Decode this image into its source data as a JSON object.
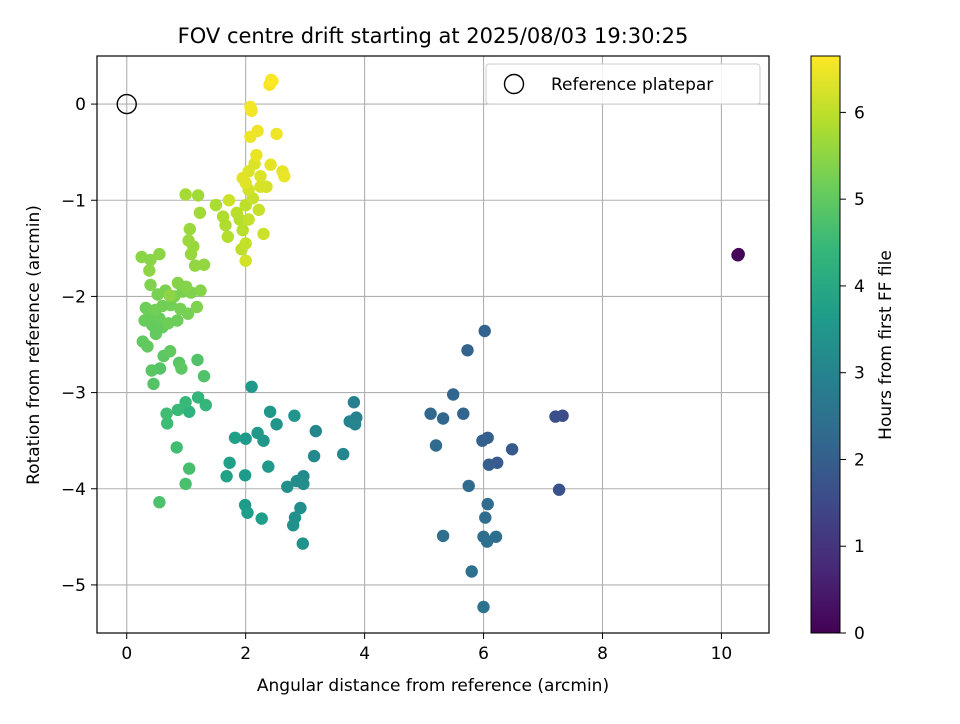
{
  "chart_data": {
    "type": "scatter",
    "title": "FOV centre drift starting at 2025/08/03 19:30:25",
    "xlabel": "Angular distance from reference (arcmin)",
    "ylabel": "Rotation from reference (arcmin)",
    "xlim": [
      -0.5,
      10.8
    ],
    "ylim": [
      -5.5,
      0.5
    ],
    "xticks": [
      0,
      2,
      4,
      6,
      8,
      10
    ],
    "yticks": [
      0,
      -1,
      -2,
      -3,
      -4,
      -5
    ],
    "xtick_labels": [
      "0",
      "2",
      "4",
      "6",
      "8",
      "10"
    ],
    "ytick_labels": [
      "0",
      "−1",
      "−2",
      "−3",
      "−4",
      "−5"
    ],
    "grid": true,
    "legend": {
      "placement": "top-right",
      "entries": [
        "Reference platepar"
      ]
    },
    "reference": {
      "name": "Reference platepar",
      "x": 0.0,
      "y": 0.0,
      "marker": "open-circle"
    },
    "colorbar": {
      "label": "Hours from first FF file",
      "colormap": "viridis",
      "range": [
        0,
        6.65
      ],
      "ticks": [
        0,
        1,
        2,
        3,
        4,
        5,
        6
      ],
      "tick_labels": [
        "0",
        "1",
        "2",
        "3",
        "4",
        "5",
        "6"
      ],
      "stops": [
        "#440154",
        "#482878",
        "#3e4989",
        "#31688e",
        "#26828e",
        "#1f9e89",
        "#35b779",
        "#6ece58",
        "#b5de2b",
        "#fde725"
      ]
    },
    "points": [
      [
        10.28,
        -1.57,
        0.02
      ],
      [
        10.28,
        -1.57,
        0.05
      ],
      [
        10.29,
        -1.56,
        0.08
      ],
      [
        10.27,
        -1.57,
        0.1
      ],
      [
        7.33,
        -3.24,
        1.55
      ],
      [
        7.21,
        -3.25,
        1.62
      ],
      [
        7.27,
        -4.01,
        1.7
      ],
      [
        6.48,
        -3.59,
        1.85
      ],
      [
        6.23,
        -3.73,
        1.9
      ],
      [
        6.09,
        -3.75,
        1.95
      ],
      [
        6.07,
        -3.47,
        2.0
      ],
      [
        5.98,
        -3.5,
        2.05
      ],
      [
        6.02,
        -2.36,
        2.1
      ],
      [
        5.73,
        -2.56,
        2.12
      ],
      [
        5.66,
        -3.22,
        2.15
      ],
      [
        5.49,
        -3.02,
        2.18
      ],
      [
        5.32,
        -3.27,
        2.2
      ],
      [
        5.11,
        -3.22,
        2.25
      ],
      [
        5.2,
        -3.55,
        2.28
      ],
      [
        5.75,
        -3.97,
        2.3
      ],
      [
        6.07,
        -4.16,
        2.32
      ],
      [
        6.03,
        -4.3,
        2.35
      ],
      [
        6.0,
        -4.5,
        2.38
      ],
      [
        6.06,
        -4.55,
        2.4
      ],
      [
        6.21,
        -4.5,
        2.42
      ],
      [
        5.32,
        -4.49,
        2.45
      ],
      [
        5.8,
        -4.86,
        2.48
      ],
      [
        6.0,
        -5.23,
        2.5
      ],
      [
        3.82,
        -3.1,
        2.9
      ],
      [
        3.86,
        -3.26,
        2.95
      ],
      [
        3.84,
        -3.33,
        3.0
      ],
      [
        3.75,
        -3.3,
        3.0
      ],
      [
        3.64,
        -3.64,
        3.05
      ],
      [
        3.18,
        -3.4,
        3.1
      ],
      [
        3.15,
        -3.66,
        3.15
      ],
      [
        2.97,
        -3.87,
        3.2
      ],
      [
        2.97,
        -3.95,
        3.25
      ],
      [
        2.86,
        -3.92,
        3.25
      ],
      [
        2.7,
        -3.98,
        3.3
      ],
      [
        2.92,
        -4.2,
        3.3
      ],
      [
        2.83,
        -4.3,
        3.35
      ],
      [
        2.8,
        -4.38,
        3.35
      ],
      [
        2.96,
        -4.57,
        3.4
      ],
      [
        2.82,
        -3.24,
        3.45
      ],
      [
        2.52,
        -3.33,
        3.45
      ],
      [
        2.41,
        -3.2,
        3.5
      ],
      [
        2.3,
        -3.5,
        3.5
      ],
      [
        2.2,
        -3.42,
        3.55
      ],
      [
        2.1,
        -2.94,
        3.55
      ],
      [
        2.0,
        -3.48,
        3.6
      ],
      [
        2.38,
        -3.77,
        3.6
      ],
      [
        1.99,
        -3.86,
        3.65
      ],
      [
        1.99,
        -4.17,
        3.65
      ],
      [
        2.03,
        -4.25,
        3.7
      ],
      [
        2.27,
        -4.31,
        3.7
      ],
      [
        1.82,
        -3.47,
        3.75
      ],
      [
        1.73,
        -3.73,
        3.75
      ],
      [
        1.68,
        -3.87,
        3.8
      ],
      [
        1.05,
        -3.2,
        4.3
      ],
      [
        1.2,
        -3.05,
        4.35
      ],
      [
        1.33,
        -3.13,
        4.4
      ],
      [
        0.99,
        -3.1,
        4.45
      ],
      [
        0.86,
        -3.18,
        4.5
      ],
      [
        0.68,
        -3.32,
        4.55
      ],
      [
        0.67,
        -3.22,
        4.6
      ],
      [
        0.84,
        -3.57,
        4.6
      ],
      [
        1.05,
        -3.79,
        4.65
      ],
      [
        0.99,
        -3.95,
        4.7
      ],
      [
        0.55,
        -4.14,
        4.75
      ],
      [
        1.3,
        -2.83,
        4.8
      ],
      [
        1.19,
        -2.66,
        4.8
      ],
      [
        0.45,
        -2.91,
        4.85
      ],
      [
        0.56,
        -2.75,
        4.85
      ],
      [
        0.42,
        -2.77,
        4.9
      ],
      [
        0.88,
        -2.69,
        4.9
      ],
      [
        0.92,
        -2.75,
        4.95
      ],
      [
        0.62,
        -2.62,
        4.95
      ],
      [
        0.73,
        -2.57,
        5.0
      ],
      [
        0.27,
        -2.47,
        5.0
      ],
      [
        0.35,
        -2.52,
        5.0
      ],
      [
        0.49,
        -2.39,
        5.05
      ],
      [
        0.6,
        -2.32,
        5.05
      ],
      [
        0.43,
        -2.3,
        5.05
      ],
      [
        0.3,
        -2.25,
        5.1
      ],
      [
        0.38,
        -2.2,
        5.1
      ],
      [
        0.55,
        -2.23,
        5.1
      ],
      [
        0.7,
        -2.28,
        5.15
      ],
      [
        0.85,
        -2.25,
        5.15
      ],
      [
        0.32,
        -2.12,
        5.15
      ],
      [
        0.48,
        -2.14,
        5.2
      ],
      [
        0.6,
        -2.1,
        5.2
      ],
      [
        0.74,
        -2.09,
        5.2
      ],
      [
        0.9,
        -2.13,
        5.25
      ],
      [
        1.03,
        -2.18,
        5.25
      ],
      [
        0.52,
        -1.98,
        5.25
      ],
      [
        0.65,
        -1.94,
        5.3
      ],
      [
        0.8,
        -2.0,
        5.3
      ],
      [
        0.94,
        -1.95,
        5.3
      ],
      [
        1.08,
        -1.96,
        5.35
      ],
      [
        1.18,
        -2.11,
        5.35
      ],
      [
        0.4,
        -1.88,
        5.35
      ],
      [
        0.86,
        -1.86,
        5.4
      ],
      [
        1.0,
        -1.9,
        5.4
      ],
      [
        1.24,
        -1.94,
        5.4
      ],
      [
        0.25,
        -1.59,
        5.45
      ],
      [
        0.4,
        -1.62,
        5.45
      ],
      [
        0.55,
        -1.56,
        5.5
      ],
      [
        0.38,
        -1.73,
        5.5
      ],
      [
        0.72,
        -1.99,
        5.5
      ],
      [
        1.15,
        -1.68,
        5.55
      ],
      [
        1.3,
        -1.67,
        5.55
      ],
      [
        1.08,
        -1.56,
        5.6
      ],
      [
        1.12,
        -1.48,
        5.6
      ],
      [
        1.04,
        -1.42,
        5.65
      ],
      [
        1.06,
        -1.3,
        5.65
      ],
      [
        1.23,
        -1.13,
        5.7
      ],
      [
        1.2,
        -0.95,
        5.7
      ],
      [
        0.99,
        -0.94,
        5.75
      ],
      [
        1.5,
        -1.05,
        5.8
      ],
      [
        1.62,
        -1.17,
        5.85
      ],
      [
        1.66,
        -1.26,
        5.85
      ],
      [
        1.7,
        -1.38,
        5.9
      ],
      [
        1.9,
        -1.2,
        5.9
      ],
      [
        1.95,
        -1.31,
        5.95
      ],
      [
        1.85,
        -1.13,
        5.95
      ],
      [
        2.0,
        -1.05,
        6.0
      ],
      [
        1.93,
        -1.51,
        6.0
      ],
      [
        2.0,
        -1.45,
        6.05
      ],
      [
        2.05,
        -1.2,
        6.05
      ],
      [
        2.22,
        -1.1,
        6.1
      ],
      [
        2.12,
        -0.98,
        6.1
      ],
      [
        1.72,
        -1.0,
        6.15
      ],
      [
        2.3,
        -1.35,
        6.15
      ],
      [
        2.0,
        -1.63,
        6.2
      ],
      [
        2.05,
        -0.89,
        6.2
      ],
      [
        2.25,
        -0.86,
        6.25
      ],
      [
        2.35,
        -0.86,
        6.25
      ],
      [
        2.25,
        -0.75,
        6.3
      ],
      [
        2.15,
        -0.62,
        6.3
      ],
      [
        2.05,
        -0.7,
        6.3
      ],
      [
        2.0,
        -0.82,
        6.35
      ],
      [
        1.95,
        -0.77,
        6.35
      ],
      [
        2.42,
        -0.63,
        6.4
      ],
      [
        2.62,
        -0.7,
        6.4
      ],
      [
        2.65,
        -0.75,
        6.45
      ],
      [
        2.18,
        -0.53,
        6.45
      ],
      [
        2.08,
        -0.34,
        6.5
      ],
      [
        2.2,
        -0.28,
        6.5
      ],
      [
        2.52,
        -0.31,
        6.5
      ],
      [
        2.1,
        -0.07,
        6.55
      ],
      [
        2.08,
        -0.03,
        6.55
      ],
      [
        2.4,
        0.2,
        6.6
      ],
      [
        2.43,
        0.25,
        6.6
      ],
      [
        2.45,
        0.24,
        6.62
      ]
    ]
  }
}
